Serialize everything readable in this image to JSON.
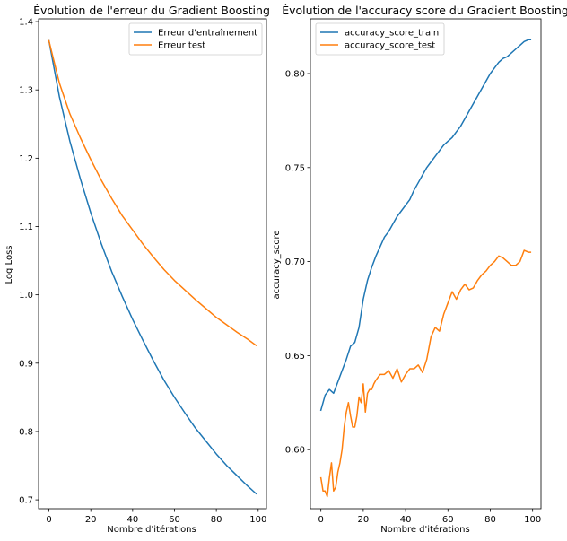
{
  "chart_data": [
    {
      "type": "line",
      "title": "Évolution de l'erreur du Gradient Boosting",
      "xlabel": "Nombre d'itérations",
      "ylabel": "Log Loss",
      "xlim": [
        -4.95,
        103.95
      ],
      "ylim": [
        0.687,
        1.404
      ],
      "xticks": [
        0,
        20,
        40,
        60,
        80,
        100
      ],
      "yticks": [
        0.7,
        0.8,
        0.9,
        1.0,
        1.1,
        1.2,
        1.3,
        1.4
      ],
      "ytick_labels": [
        "0.7",
        "0.8",
        "0.9",
        "1.0",
        "1.1",
        "1.2",
        "1.3",
        "1.4"
      ],
      "legend": "top-right",
      "grid": false,
      "series": [
        {
          "name": "Erreur d'entraînement",
          "color": "#1f77b4",
          "x": [
            0,
            5,
            10,
            15,
            20,
            25,
            30,
            35,
            40,
            45,
            50,
            55,
            60,
            65,
            70,
            75,
            80,
            85,
            90,
            95,
            99
          ],
          "y": [
            1.372,
            1.29,
            1.225,
            1.17,
            1.12,
            1.075,
            1.034,
            0.998,
            0.964,
            0.933,
            0.903,
            0.875,
            0.85,
            0.827,
            0.805,
            0.786,
            0.767,
            0.75,
            0.735,
            0.72,
            0.709
          ]
        },
        {
          "name": "Erreur test",
          "color": "#ff7f0e",
          "x": [
            0,
            5,
            10,
            15,
            20,
            25,
            30,
            35,
            40,
            45,
            50,
            55,
            60,
            65,
            70,
            75,
            80,
            85,
            90,
            95,
            99
          ],
          "y": [
            1.372,
            1.31,
            1.265,
            1.23,
            1.198,
            1.168,
            1.141,
            1.116,
            1.095,
            1.074,
            1.055,
            1.037,
            1.021,
            1.007,
            0.993,
            0.98,
            0.967,
            0.956,
            0.945,
            0.935,
            0.926
          ]
        }
      ]
    },
    {
      "type": "line",
      "title": "Évolution de l'accuracy score du Gradient Boosting",
      "xlabel": "Nombre d'itérations",
      "ylabel": "accuracy_score",
      "xlim": [
        -4.95,
        103.95
      ],
      "ylim": [
        0.5686,
        0.8291
      ],
      "xticks": [
        0,
        20,
        40,
        60,
        80,
        100
      ],
      "yticks": [
        0.6,
        0.65,
        0.7,
        0.75,
        0.8
      ],
      "ytick_labels": [
        "0.60",
        "0.65",
        "0.70",
        "0.75",
        "0.80"
      ],
      "legend": "top-left",
      "grid": false,
      "series": [
        {
          "name": "accuracy_score_train",
          "color": "#1f77b4",
          "x": [
            0,
            2,
            4,
            6,
            8,
            10,
            12,
            14,
            16,
            18,
            20,
            22,
            24,
            26,
            28,
            30,
            32,
            34,
            36,
            38,
            40,
            42,
            44,
            46,
            48,
            50,
            52,
            54,
            56,
            58,
            60,
            62,
            64,
            66,
            68,
            70,
            72,
            74,
            76,
            78,
            80,
            82,
            84,
            86,
            88,
            90,
            92,
            94,
            96,
            98,
            99
          ],
          "y": [
            0.621,
            0.629,
            0.632,
            0.63,
            0.636,
            0.642,
            0.648,
            0.655,
            0.657,
            0.665,
            0.68,
            0.69,
            0.697,
            0.703,
            0.708,
            0.713,
            0.716,
            0.72,
            0.724,
            0.727,
            0.73,
            0.733,
            0.738,
            0.742,
            0.746,
            0.75,
            0.753,
            0.756,
            0.759,
            0.762,
            0.764,
            0.766,
            0.769,
            0.772,
            0.776,
            0.78,
            0.784,
            0.788,
            0.792,
            0.796,
            0.8,
            0.803,
            0.806,
            0.808,
            0.809,
            0.811,
            0.813,
            0.815,
            0.817,
            0.818,
            0.818
          ]
        },
        {
          "name": "accuracy_score_test",
          "color": "#ff7f0e",
          "x": [
            0,
            1,
            2,
            3,
            4,
            5,
            6,
            7,
            8,
            9,
            10,
            11,
            12,
            13,
            14,
            15,
            16,
            17,
            18,
            19,
            20,
            21,
            22,
            23,
            24,
            25,
            26,
            28,
            30,
            32,
            34,
            36,
            38,
            40,
            42,
            44,
            46,
            48,
            50,
            52,
            54,
            56,
            58,
            60,
            62,
            64,
            66,
            68,
            70,
            72,
            74,
            76,
            78,
            80,
            82,
            84,
            86,
            88,
            90,
            92,
            94,
            96,
            98,
            99
          ],
          "y": [
            0.585,
            0.578,
            0.578,
            0.575,
            0.585,
            0.593,
            0.578,
            0.58,
            0.588,
            0.593,
            0.6,
            0.612,
            0.62,
            0.625,
            0.618,
            0.612,
            0.612,
            0.618,
            0.628,
            0.625,
            0.635,
            0.62,
            0.63,
            0.632,
            0.632,
            0.635,
            0.637,
            0.64,
            0.64,
            0.642,
            0.638,
            0.643,
            0.636,
            0.64,
            0.643,
            0.643,
            0.645,
            0.641,
            0.648,
            0.66,
            0.665,
            0.663,
            0.672,
            0.678,
            0.684,
            0.68,
            0.685,
            0.688,
            0.685,
            0.686,
            0.69,
            0.693,
            0.695,
            0.698,
            0.7,
            0.703,
            0.702,
            0.7,
            0.698,
            0.698,
            0.7,
            0.706,
            0.705,
            0.705
          ]
        }
      ]
    }
  ]
}
